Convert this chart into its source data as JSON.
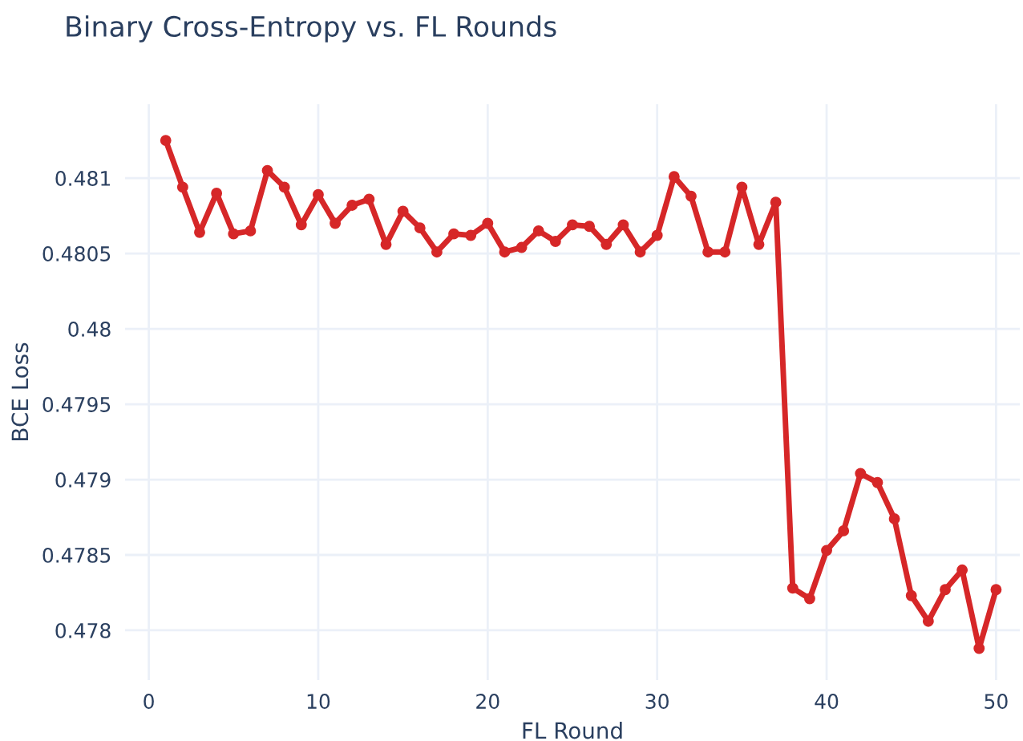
{
  "chart_data": {
    "type": "line",
    "title": "Binary Cross-Entropy vs. FL Rounds",
    "xlabel": "FL Round",
    "ylabel": "BCE Loss",
    "x": [
      1,
      2,
      3,
      4,
      5,
      6,
      7,
      8,
      9,
      10,
      11,
      12,
      13,
      14,
      15,
      16,
      17,
      18,
      19,
      20,
      21,
      22,
      23,
      24,
      25,
      26,
      27,
      28,
      29,
      30,
      31,
      32,
      33,
      34,
      35,
      36,
      37,
      38,
      39,
      40,
      41,
      42,
      43,
      44,
      45,
      46,
      47,
      48,
      49,
      50
    ],
    "series": [
      {
        "color": "#d62728",
        "values": [
          0.48125,
          0.48094,
          0.48064,
          0.4809,
          0.48063,
          0.48065,
          0.48105,
          0.48094,
          0.48069,
          0.48089,
          0.4807,
          0.48082,
          0.48086,
          0.48056,
          0.48078,
          0.48067,
          0.48051,
          0.48063,
          0.48062,
          0.4807,
          0.48051,
          0.48054,
          0.48065,
          0.48058,
          0.48069,
          0.48068,
          0.48056,
          0.48069,
          0.48051,
          0.48062,
          0.48101,
          0.48088,
          0.48051,
          0.48051,
          0.48094,
          0.48056,
          0.48084,
          0.47828,
          0.47821,
          0.47853,
          0.47866,
          0.47904,
          0.47898,
          0.47874,
          0.47823,
          0.47806,
          0.47827,
          0.4784,
          0.47788,
          0.47827
        ]
      }
    ],
    "xlim": [
      -1.4,
      51.4
    ],
    "xticks": [
      0,
      10,
      20,
      30,
      40,
      50
    ],
    "ylim": [
      0.47767,
      0.48149
    ],
    "yticks": [
      0.478,
      0.4785,
      0.479,
      0.4795,
      0.48,
      0.4805,
      0.481
    ],
    "grid": true,
    "marker": "circle",
    "line_style": "solid"
  }
}
